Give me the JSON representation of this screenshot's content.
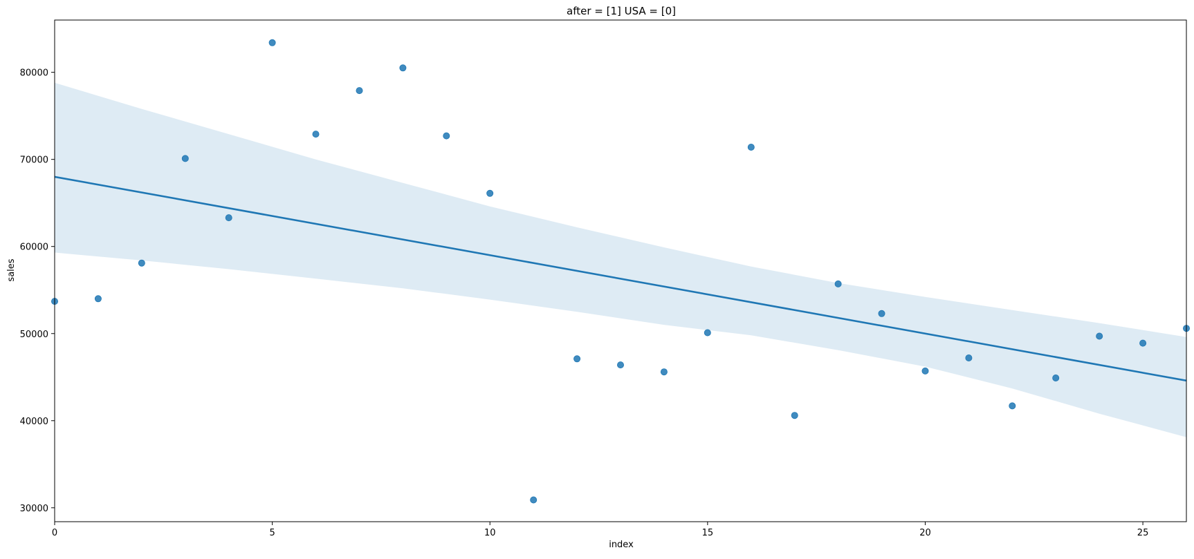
{
  "chart_data": {
    "type": "scatter",
    "title": "after = [1] USA = [0]",
    "xlabel": "index",
    "ylabel": "sales",
    "xlim": [
      0,
      26
    ],
    "ylim": [
      28400,
      86000
    ],
    "xticks": [
      0,
      5,
      10,
      15,
      20,
      25
    ],
    "yticks": [
      30000,
      40000,
      50000,
      60000,
      70000,
      80000
    ],
    "grid": false,
    "colors": {
      "points": "#1f77b4",
      "line": "#1f77b4",
      "band": "#1f77b4"
    },
    "points": {
      "x": [
        0,
        1,
        2,
        3,
        4,
        5,
        6,
        7,
        8,
        9,
        10,
        11,
        12,
        13,
        14,
        15,
        16,
        17,
        18,
        19,
        20,
        21,
        22,
        23,
        24,
        25,
        26
      ],
      "y": [
        53700,
        54000,
        58100,
        70100,
        63300,
        83400,
        72900,
        77900,
        80500,
        72700,
        66100,
        30900,
        47100,
        46400,
        45600,
        50100,
        71400,
        40600,
        55700,
        52300,
        45700,
        47200,
        41700,
        44900,
        49700,
        48900,
        50600
      ]
    },
    "regression": {
      "x": [
        0,
        26
      ],
      "y": [
        68000,
        44600
      ]
    },
    "confidence_band": {
      "x": [
        0,
        2,
        4,
        6,
        8,
        10,
        12,
        14,
        16,
        18,
        20,
        22,
        24,
        26
      ],
      "upper": [
        78800,
        75800,
        72900,
        70000,
        67300,
        64600,
        62200,
        59900,
        57700,
        55800,
        54200,
        52700,
        51200,
        49600
      ],
      "lower": [
        59300,
        58400,
        57400,
        56300,
        55200,
        53900,
        52500,
        51000,
        49800,
        48100,
        46200,
        43700,
        40800,
        38100
      ]
    }
  }
}
